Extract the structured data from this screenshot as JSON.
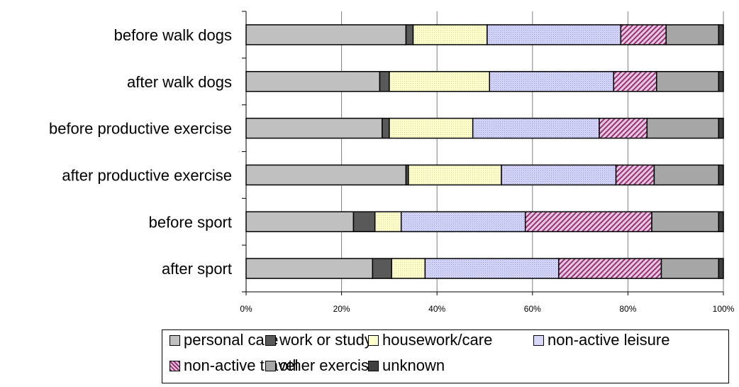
{
  "chart_data": {
    "type": "bar",
    "orientation": "horizontal",
    "stacked": "percent",
    "categories": [
      "before walk dogs",
      "after walk dogs",
      "before productive exercise",
      "after productive exercise",
      "before sport",
      "after sport"
    ],
    "series": [
      {
        "name": "personal care",
        "color": "#c0c0c0",
        "pattern": "solid",
        "values": [
          33.5,
          28.0,
          28.5,
          33.5,
          22.5,
          26.5
        ]
      },
      {
        "name": "work or study",
        "color": "#595959",
        "pattern": "solid",
        "values": [
          1.5,
          2.0,
          1.5,
          0.5,
          4.5,
          4.0
        ]
      },
      {
        "name": "housework/care",
        "color": "#ffffcc",
        "pattern": "dots",
        "values": [
          15.5,
          21.0,
          17.5,
          19.5,
          5.5,
          7.0
        ]
      },
      {
        "name": "non-active leisure",
        "color": "#ccccff",
        "pattern": "dots",
        "values": [
          28.0,
          26.0,
          26.5,
          24.0,
          26.0,
          28.0
        ]
      },
      {
        "name": "non-active travel",
        "color": "#cc99cc",
        "pattern": "diagonal",
        "values": [
          9.5,
          9.0,
          10.0,
          8.0,
          26.5,
          21.5
        ]
      },
      {
        "name": "other exercise",
        "color": "#a6a6a6",
        "pattern": "solid",
        "values": [
          11.0,
          13.0,
          15.0,
          13.5,
          14.0,
          12.0
        ]
      },
      {
        "name": "unknown",
        "color": "#404040",
        "pattern": "solid",
        "values": [
          1.0,
          1.0,
          1.0,
          1.0,
          1.0,
          1.0
        ]
      }
    ],
    "xlim": [
      0,
      100
    ],
    "xticks": [
      "0%",
      "20%",
      "40%",
      "60%",
      "80%",
      "100%"
    ],
    "grid": true,
    "legend_position": "bottom"
  }
}
